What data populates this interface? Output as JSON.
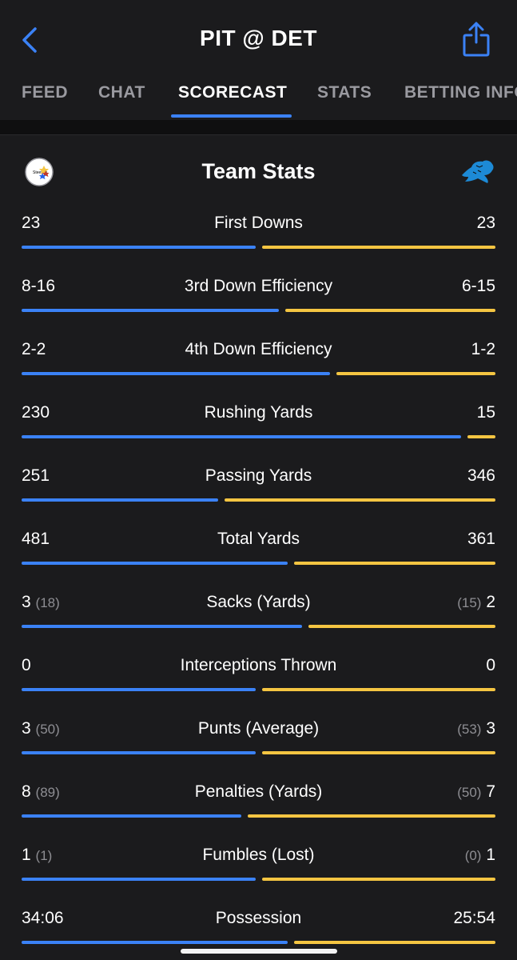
{
  "header": {
    "title": "PIT @ DET"
  },
  "tabs": [
    {
      "label": "FEED",
      "active": false
    },
    {
      "label": "CHAT",
      "active": false
    },
    {
      "label": "SCORECAST",
      "active": true
    },
    {
      "label": "STATS",
      "active": false
    },
    {
      "label": "BETTING INFO",
      "active": false
    }
  ],
  "section": {
    "title": "Team Stats"
  },
  "colors": {
    "home_bar": "#3b82f6",
    "away_bar": "#f4c542",
    "background": "#1b1b1d"
  },
  "stats": [
    {
      "label": "First Downs",
      "home": "23",
      "home_sub": "",
      "away": "23",
      "away_sub": "",
      "home_share": 0.5
    },
    {
      "label": "3rd Down Efficiency",
      "home": "8-16",
      "home_sub": "",
      "away": "6-15",
      "away_sub": "",
      "home_share": 0.55
    },
    {
      "label": "4th Down Efficiency",
      "home": "2-2",
      "home_sub": "",
      "away": "1-2",
      "away_sub": "",
      "home_share": 0.66
    },
    {
      "label": "Rushing Yards",
      "home": "230",
      "home_sub": "",
      "away": "15",
      "away_sub": "",
      "home_share": 0.94
    },
    {
      "label": "Passing Yards",
      "home": "251",
      "home_sub": "",
      "away": "346",
      "away_sub": "",
      "home_share": 0.42
    },
    {
      "label": "Total Yards",
      "home": "481",
      "home_sub": "",
      "away": "361",
      "away_sub": "",
      "home_share": 0.57
    },
    {
      "label": "Sacks (Yards)",
      "home": "3",
      "home_sub": "(18)",
      "away": "2",
      "away_sub": "(15)",
      "home_share": 0.6
    },
    {
      "label": "Interceptions Thrown",
      "home": "0",
      "home_sub": "",
      "away": "0",
      "away_sub": "",
      "home_share": 0.5
    },
    {
      "label": "Punts (Average)",
      "home": "3",
      "home_sub": "(50)",
      "away": "3",
      "away_sub": "(53)",
      "home_share": 0.5
    },
    {
      "label": "Penalties (Yards)",
      "home": "8",
      "home_sub": "(89)",
      "away": "7",
      "away_sub": "(50)",
      "home_share": 0.47
    },
    {
      "label": "Fumbles (Lost)",
      "home": "1",
      "home_sub": "(1)",
      "away": "1",
      "away_sub": "(0)",
      "home_share": 0.5
    },
    {
      "label": "Possession",
      "home": "34:06",
      "home_sub": "",
      "away": "25:54",
      "away_sub": "",
      "home_share": 0.57
    }
  ]
}
